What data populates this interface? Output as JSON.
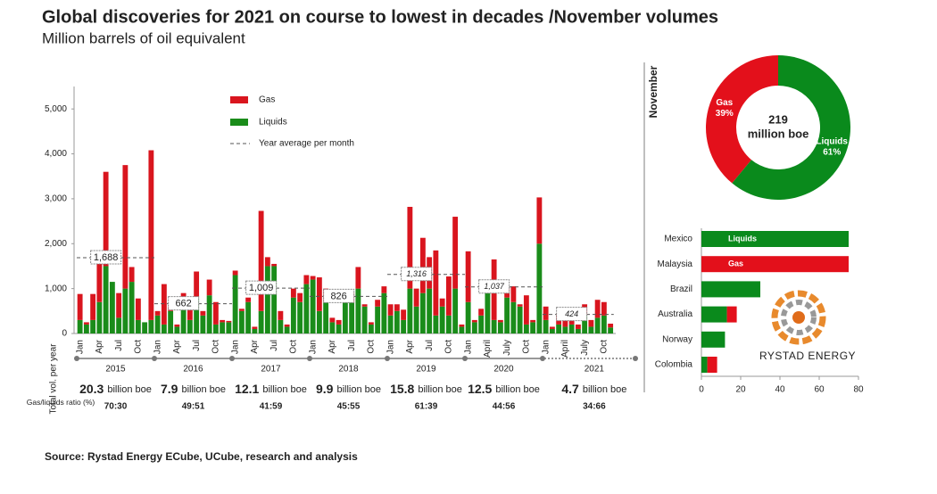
{
  "title": "Global discoveries for 2021 on course to lowest in decades /November volumes",
  "subtitle": "Million barrels of oil equivalent",
  "source": "Source: Rystad Energy ECube, UCube, research and analysis",
  "logo_text": "RYSTAD ENERGY",
  "chart_data": [
    {
      "type": "bar",
      "stacked": true,
      "categories": [
        "Jan",
        null,
        null,
        "Apr",
        null,
        null,
        "Jul",
        null,
        null,
        "Oct",
        null,
        null,
        "Jan",
        null,
        null,
        "Apr",
        null,
        null,
        "Jul",
        null,
        null,
        "Oct",
        null,
        null,
        "Jan",
        null,
        null,
        "Apr",
        null,
        null,
        "Jul",
        null,
        null,
        "Oct",
        null,
        null,
        "Jan",
        null,
        null,
        "Apr",
        null,
        null,
        "Jul",
        null,
        null,
        "Oct",
        null,
        null,
        "Jan",
        null,
        null,
        "Apr",
        null,
        null,
        "Jul",
        null,
        null,
        "Oct",
        null,
        null,
        "Jan",
        null,
        null,
        "April",
        null,
        null,
        "July",
        null,
        null,
        "Oct",
        null,
        null,
        "Jan",
        null,
        null,
        "April",
        null,
        null,
        "July",
        null,
        null,
        "Oct",
        null
      ],
      "series": [
        {
          "name": "Gas",
          "color": "#d9151e",
          "values": [
            580,
            50,
            580,
            1000,
            2100,
            0,
            550,
            2750,
            330,
            480,
            0,
            3780,
            100,
            900,
            100,
            50,
            200,
            250,
            580,
            100,
            350,
            500,
            50,
            30,
            100,
            50,
            100,
            50,
            2230,
            200,
            50,
            200,
            50,
            200,
            200,
            200,
            80,
            750,
            300,
            100,
            100,
            100,
            200,
            480,
            50,
            50,
            150,
            150,
            250,
            150,
            230,
            1820,
            400,
            1230,
            700,
            1450,
            180,
            870,
            1600,
            50,
            1130,
            50,
            150,
            50,
            1350,
            50,
            250,
            350,
            50,
            650,
            50,
            1030,
            300,
            50,
            250,
            200,
            200,
            100,
            250,
            150,
            400,
            300,
            85
          ]
        },
        {
          "name": "Liquids",
          "color": "#1a8c1a",
          "values": [
            300,
            200,
            300,
            700,
            1500,
            1150,
            350,
            1000,
            1150,
            300,
            250,
            300,
            400,
            200,
            500,
            150,
            700,
            300,
            800,
            400,
            850,
            200,
            250,
            250,
            1300,
            500,
            700,
            100,
            500,
            1500,
            1500,
            300,
            150,
            800,
            700,
            1100,
            1200,
            500,
            700,
            250,
            200,
            700,
            700,
            1000,
            600,
            200,
            600,
            900,
            400,
            500,
            300,
            1000,
            600,
            900,
            1000,
            400,
            600,
            400,
            1000,
            150,
            700,
            250,
            400,
            1000,
            300,
            250,
            800,
            700,
            600,
            200,
            250,
            2000,
            300,
            100,
            200,
            150,
            200,
            100,
            400,
            150,
            350,
            400,
            134
          ]
        }
      ],
      "year_average": {
        "name": "Year average per month",
        "values": [
          1688,
          662,
          1009,
          826,
          1316,
          1037,
          424
        ],
        "value_labels": [
          "1,688",
          "662",
          "1,009",
          "826",
          "1,316",
          "1,037",
          "424"
        ]
      },
      "years": [
        "2015",
        "2016",
        "2017",
        "2018",
        "2019",
        "2020",
        "2021"
      ],
      "total_label": "Total vol. per year",
      "year_totals": [
        20.3,
        7.9,
        12.1,
        9.9,
        15.8,
        12.5,
        4.7
      ],
      "total_unit": "billion boe",
      "ratio_label": "Gas/liquids ratio (%)",
      "ratios": [
        "70:30",
        "49:51",
        "41:59",
        "45:55",
        "61:39",
        "44:56",
        "34:66"
      ],
      "ylim": [
        0,
        5500
      ],
      "yticks": [
        0,
        {
          "value": 1000,
          "label": "1,000"
        },
        {
          "value": 2000,
          "label": "2,000"
        },
        {
          "value": 3000,
          "label": "3,000"
        },
        {
          "value": 4000,
          "label": "4,000"
        },
        {
          "value": 5000,
          "label": "5,000"
        }
      ]
    },
    {
      "type": "pie",
      "donut": true,
      "title": "November",
      "categories": [
        "Gas",
        "Liquids"
      ],
      "values": [
        39,
        61
      ],
      "value_labels": [
        "39%",
        "61%"
      ],
      "colors": [
        "#e3101b",
        "#0a8a1c"
      ],
      "center_value": 219,
      "center_unit": "million boe"
    },
    {
      "type": "hbar",
      "stacked": true,
      "categories": [
        "Mexico",
        "Malaysia",
        "Brazil",
        "Australia",
        "Norway",
        "Colombia"
      ],
      "series": [
        {
          "name": "Liquids",
          "color": "#0a8a1c",
          "values": [
            75,
            null,
            30,
            13,
            12,
            3
          ]
        },
        {
          "name": "Gas",
          "color": "#e3101b",
          "values": [
            null,
            75,
            null,
            5,
            null,
            5
          ]
        }
      ],
      "xlim": [
        0,
        80
      ],
      "xticks": [
        0,
        20,
        40,
        60,
        80
      ]
    }
  ]
}
